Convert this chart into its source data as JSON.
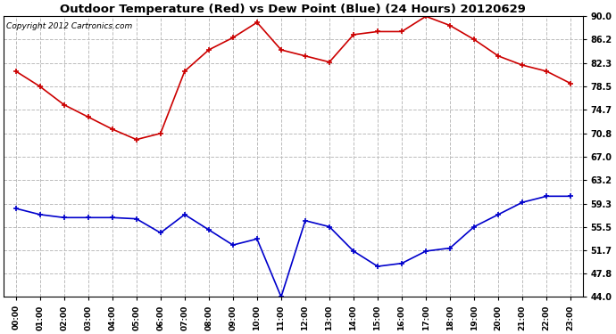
{
  "title": "Outdoor Temperature (Red) vs Dew Point (Blue) (24 Hours) 20120629",
  "copyright_text": "Copyright 2012 Cartronics.com",
  "hours": [
    "00:00",
    "01:00",
    "02:00",
    "03:00",
    "04:00",
    "05:00",
    "06:00",
    "07:00",
    "08:00",
    "09:00",
    "10:00",
    "11:00",
    "12:00",
    "13:00",
    "14:00",
    "15:00",
    "16:00",
    "17:00",
    "18:00",
    "19:00",
    "20:00",
    "21:00",
    "22:00",
    "23:00"
  ],
  "temp_red": [
    81.0,
    78.5,
    75.5,
    73.5,
    71.5,
    69.8,
    70.8,
    81.0,
    84.5,
    86.5,
    89.0,
    84.5,
    83.5,
    82.5,
    87.0,
    87.5,
    87.5,
    90.0,
    88.5,
    86.2,
    83.5,
    82.0,
    81.0,
    79.0
  ],
  "dew_blue": [
    58.5,
    57.5,
    57.0,
    57.0,
    57.0,
    56.8,
    54.5,
    57.5,
    55.0,
    52.5,
    53.5,
    44.0,
    56.5,
    55.5,
    51.5,
    49.0,
    49.5,
    51.5,
    52.0,
    55.5,
    57.5,
    59.5,
    60.5,
    60.5
  ],
  "yticks": [
    44.0,
    47.8,
    51.7,
    55.5,
    59.3,
    63.2,
    67.0,
    70.8,
    74.7,
    78.5,
    82.3,
    86.2,
    90.0
  ],
  "ylim": [
    44.0,
    90.0
  ],
  "bg_color": "#ffffff",
  "plot_bg_color": "#ffffff",
  "grid_color": "#bbbbbb",
  "red_color": "#cc0000",
  "blue_color": "#0000cc",
  "title_fontsize": 9.5,
  "copyright_fontsize": 6.5
}
